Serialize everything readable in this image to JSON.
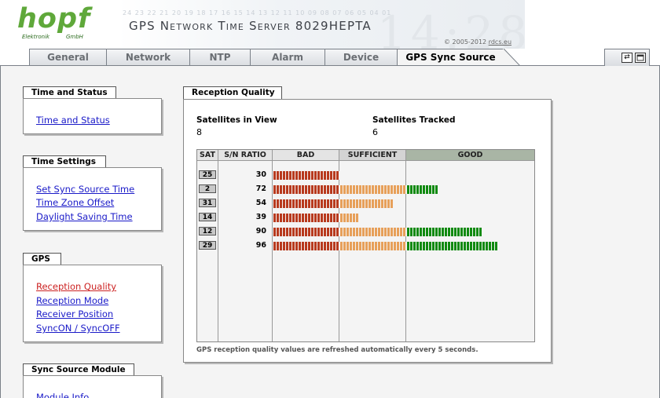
{
  "header": {
    "logo_text": "hopf",
    "logo_sub": "Elektronik",
    "logo_gmbh": "GmbH",
    "title": "GPS Network Time Server 8029HEPTA",
    "copyright_prefix": "© 2005-2012 ",
    "copyright_link": "rdcs.eu",
    "decor_digits": "24 23 22 21 20 19 18 17 16 15 14 13 12 11 10 09 08 07 06 05 04 01",
    "decor_large": "14:28"
  },
  "tabs": [
    {
      "label": "General",
      "active": false
    },
    {
      "label": "Network",
      "active": false
    },
    {
      "label": "NTP",
      "active": false
    },
    {
      "label": "Alarm",
      "active": false
    },
    {
      "label": "Device",
      "active": false
    },
    {
      "label": "GPS Sync Source",
      "active": true
    }
  ],
  "toolbar_icons": [
    "refresh-icon",
    "window-icon"
  ],
  "sidebar": {
    "sections": [
      {
        "title": "Time and Status",
        "links": [
          {
            "label": "Time and Status"
          }
        ]
      },
      {
        "title": "Time Settings",
        "links": [
          {
            "label": "Set Sync Source Time"
          },
          {
            "label": "Time Zone Offset"
          },
          {
            "label": "Daylight Saving Time"
          }
        ]
      },
      {
        "title": "GPS",
        "links": [
          {
            "label": "Reception Quality",
            "current": true
          },
          {
            "label": "Reception Mode"
          },
          {
            "label": "Receiver Position"
          },
          {
            "label": "SyncON / SyncOFF"
          }
        ]
      },
      {
        "title": "Sync Source Module",
        "links": [
          {
            "label": "Module Info"
          }
        ]
      }
    ]
  },
  "reception_quality": {
    "title": "Reception Quality",
    "satellites_in_view_label": "Satellites in View",
    "satellites_in_view": "8",
    "satellites_tracked_label": "Satellites Tracked",
    "satellites_tracked": "6",
    "columns": {
      "sat": "SAT",
      "snr": "S/N RATIO",
      "bad": "BAD",
      "sufficient": "SUFFICIENT",
      "good": "GOOD"
    },
    "header_colors": {
      "bad": "#e4e4e4",
      "sufficient": "#d4d4d4",
      "good": "#a9b5a5"
    },
    "bar_colors": {
      "bad": "#b83a1e",
      "sufficient": "#e7a05a",
      "good": "#118a11"
    },
    "thresholds": {
      "bad_max": 30,
      "sufficient_max": 60
    },
    "good_segment_max_estimate": 110,
    "satellites": [
      {
        "sat": "25",
        "snr": 30
      },
      {
        "sat": "2",
        "snr": 72
      },
      {
        "sat": "31",
        "snr": 54
      },
      {
        "sat": "14",
        "snr": 39
      },
      {
        "sat": "12",
        "snr": 90
      },
      {
        "sat": "29",
        "snr": 96
      }
    ],
    "note": "GPS reception quality values are refreshed automatically every 5 seconds."
  }
}
